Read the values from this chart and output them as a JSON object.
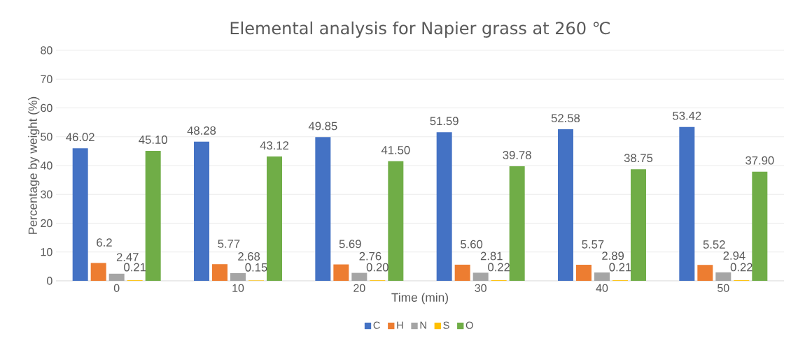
{
  "chart_data": {
    "type": "bar",
    "title": "Elemental analysis for Napier grass at 260 ℃",
    "xlabel": "Time (min)",
    "ylabel": "Percentage by weight (%)",
    "categories": [
      "0",
      "10",
      "20",
      "30",
      "40",
      "50"
    ],
    "series": [
      {
        "name": "C",
        "color": "#4472c4",
        "values": [
          46.02,
          48.28,
          49.85,
          51.59,
          52.58,
          53.42
        ],
        "value_labels": [
          "46.02",
          "48.28",
          "49.85",
          "51.59",
          "52.58",
          "53.42"
        ]
      },
      {
        "name": "H",
        "color": "#ed7d31",
        "values": [
          6.2,
          5.77,
          5.69,
          5.6,
          5.57,
          5.52
        ],
        "value_labels": [
          "6.2",
          "5.77",
          "5.69",
          "5.60",
          "5.57",
          "5.52"
        ]
      },
      {
        "name": "N",
        "color": "#a5a5a5",
        "values": [
          2.47,
          2.68,
          2.76,
          2.81,
          2.89,
          2.94
        ],
        "value_labels": [
          "2.47",
          "2.68",
          "2.76",
          "2.81",
          "2.89",
          "2.94"
        ]
      },
      {
        "name": "S",
        "color": "#ffc000",
        "values": [
          0.21,
          0.15,
          0.2,
          0.22,
          0.21,
          0.22
        ],
        "value_labels": [
          "0.21",
          "0.15",
          "0.20",
          "0.22",
          "0.21",
          "0.22"
        ]
      },
      {
        "name": "O",
        "color": "#70ad47",
        "values": [
          45.1,
          43.12,
          41.5,
          39.78,
          38.75,
          37.9
        ],
        "value_labels": [
          "45.10",
          "43.12",
          "41.50",
          "39.78",
          "38.75",
          "37.90"
        ]
      }
    ],
    "ylim": [
      0,
      80
    ],
    "yticks": [
      0,
      10,
      20,
      30,
      40,
      50,
      60,
      70,
      80
    ],
    "grid": "y",
    "legend": "bottom"
  }
}
